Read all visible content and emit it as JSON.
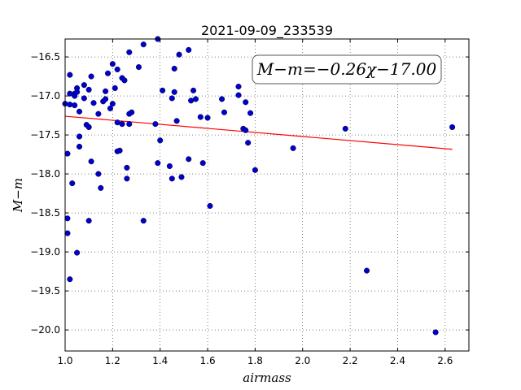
{
  "chart_data": {
    "type": "scatter",
    "title": "2021-09-09_233539",
    "xlabel": "airmass",
    "ylabel": "M−m",
    "xlim": [
      1.0,
      2.7
    ],
    "ylim": [
      -20.27,
      -16.27
    ],
    "y_inverted": true,
    "grid": true,
    "xticks": [
      1.0,
      1.2,
      1.4,
      1.6,
      1.8,
      2.0,
      2.2,
      2.4,
      2.6
    ],
    "xtick_labels": [
      "1.0",
      "1.2",
      "1.4",
      "1.6",
      "1.8",
      "2.0",
      "2.2",
      "2.4",
      "2.6"
    ],
    "yticks": [
      -16.5,
      -17.0,
      -17.5,
      -18.0,
      -18.5,
      -19.0,
      -19.5,
      -20.0
    ],
    "ytick_labels": [
      "−16.5",
      "−17.0",
      "−17.5",
      "−18.0",
      "−18.5",
      "−19.0",
      "−19.5",
      "−20.0"
    ],
    "annotation": "M−m=−0.26χ−17.00",
    "fit": {
      "slope": -0.26,
      "intercept": -17.0,
      "x_range": [
        1.0,
        2.63
      ],
      "color": "#ff0000"
    },
    "point_color": "#0000cc",
    "points": [
      [
        1.0,
        -17.1
      ],
      [
        1.01,
        -17.74
      ],
      [
        1.01,
        -18.57
      ],
      [
        1.01,
        -18.76
      ],
      [
        1.02,
        -16.73
      ],
      [
        1.02,
        -16.97
      ],
      [
        1.02,
        -17.11
      ],
      [
        1.02,
        -19.35
      ],
      [
        1.03,
        -18.12
      ],
      [
        1.04,
        -16.97
      ],
      [
        1.04,
        -17.12
      ],
      [
        1.04,
        -17.0
      ],
      [
        1.05,
        -16.9
      ],
      [
        1.05,
        -16.95
      ],
      [
        1.05,
        -19.01
      ],
      [
        1.06,
        -17.2
      ],
      [
        1.06,
        -17.52
      ],
      [
        1.06,
        -17.65
      ],
      [
        1.08,
        -16.86
      ],
      [
        1.08,
        -17.03
      ],
      [
        1.09,
        -17.37
      ],
      [
        1.1,
        -16.92
      ],
      [
        1.1,
        -17.4
      ],
      [
        1.1,
        -18.6
      ],
      [
        1.11,
        -16.75
      ],
      [
        1.11,
        -17.84
      ],
      [
        1.12,
        -17.09
      ],
      [
        1.14,
        -17.23
      ],
      [
        1.14,
        -18.0
      ],
      [
        1.15,
        -18.18
      ],
      [
        1.16,
        -17.07
      ],
      [
        1.17,
        -16.94
      ],
      [
        1.17,
        -17.04
      ],
      [
        1.18,
        -16.71
      ],
      [
        1.19,
        -17.16
      ],
      [
        1.2,
        -16.59
      ],
      [
        1.2,
        -17.1
      ],
      [
        1.21,
        -16.9
      ],
      [
        1.22,
        -16.66
      ],
      [
        1.22,
        -17.34
      ],
      [
        1.22,
        -17.71
      ],
      [
        1.23,
        -17.7
      ],
      [
        1.24,
        -16.77
      ],
      [
        1.24,
        -17.36
      ],
      [
        1.25,
        -16.8
      ],
      [
        1.26,
        -17.92
      ],
      [
        1.26,
        -18.06
      ],
      [
        1.27,
        -16.44
      ],
      [
        1.27,
        -17.23
      ],
      [
        1.27,
        -17.36
      ],
      [
        1.28,
        -17.21
      ],
      [
        1.31,
        -16.63
      ],
      [
        1.33,
        -16.34
      ],
      [
        1.33,
        -18.6
      ],
      [
        1.38,
        -17.36
      ],
      [
        1.39,
        -16.27
      ],
      [
        1.39,
        -17.86
      ],
      [
        1.4,
        -17.57
      ],
      [
        1.41,
        -16.93
      ],
      [
        1.44,
        -17.9
      ],
      [
        1.45,
        -18.06
      ],
      [
        1.45,
        -17.03
      ],
      [
        1.46,
        -16.95
      ],
      [
        1.46,
        -16.65
      ],
      [
        1.47,
        -17.32
      ],
      [
        1.48,
        -16.47
      ],
      [
        1.49,
        -18.04
      ],
      [
        1.52,
        -17.81
      ],
      [
        1.52,
        -16.41
      ],
      [
        1.53,
        -17.06
      ],
      [
        1.54,
        -16.93
      ],
      [
        1.55,
        -17.04
      ],
      [
        1.57,
        -17.27
      ],
      [
        1.58,
        -17.86
      ],
      [
        1.6,
        -17.28
      ],
      [
        1.61,
        -18.41
      ],
      [
        1.66,
        -17.04
      ],
      [
        1.67,
        -17.21
      ],
      [
        1.73,
        -16.88
      ],
      [
        1.73,
        -16.99
      ],
      [
        1.75,
        -17.42
      ],
      [
        1.76,
        -17.44
      ],
      [
        1.76,
        -17.08
      ],
      [
        1.77,
        -17.6
      ],
      [
        1.78,
        -17.22
      ],
      [
        1.8,
        -17.95
      ],
      [
        1.96,
        -17.67
      ],
      [
        2.18,
        -17.42
      ],
      [
        2.27,
        -19.24
      ],
      [
        2.56,
        -20.03
      ],
      [
        2.63,
        -17.4
      ]
    ]
  }
}
